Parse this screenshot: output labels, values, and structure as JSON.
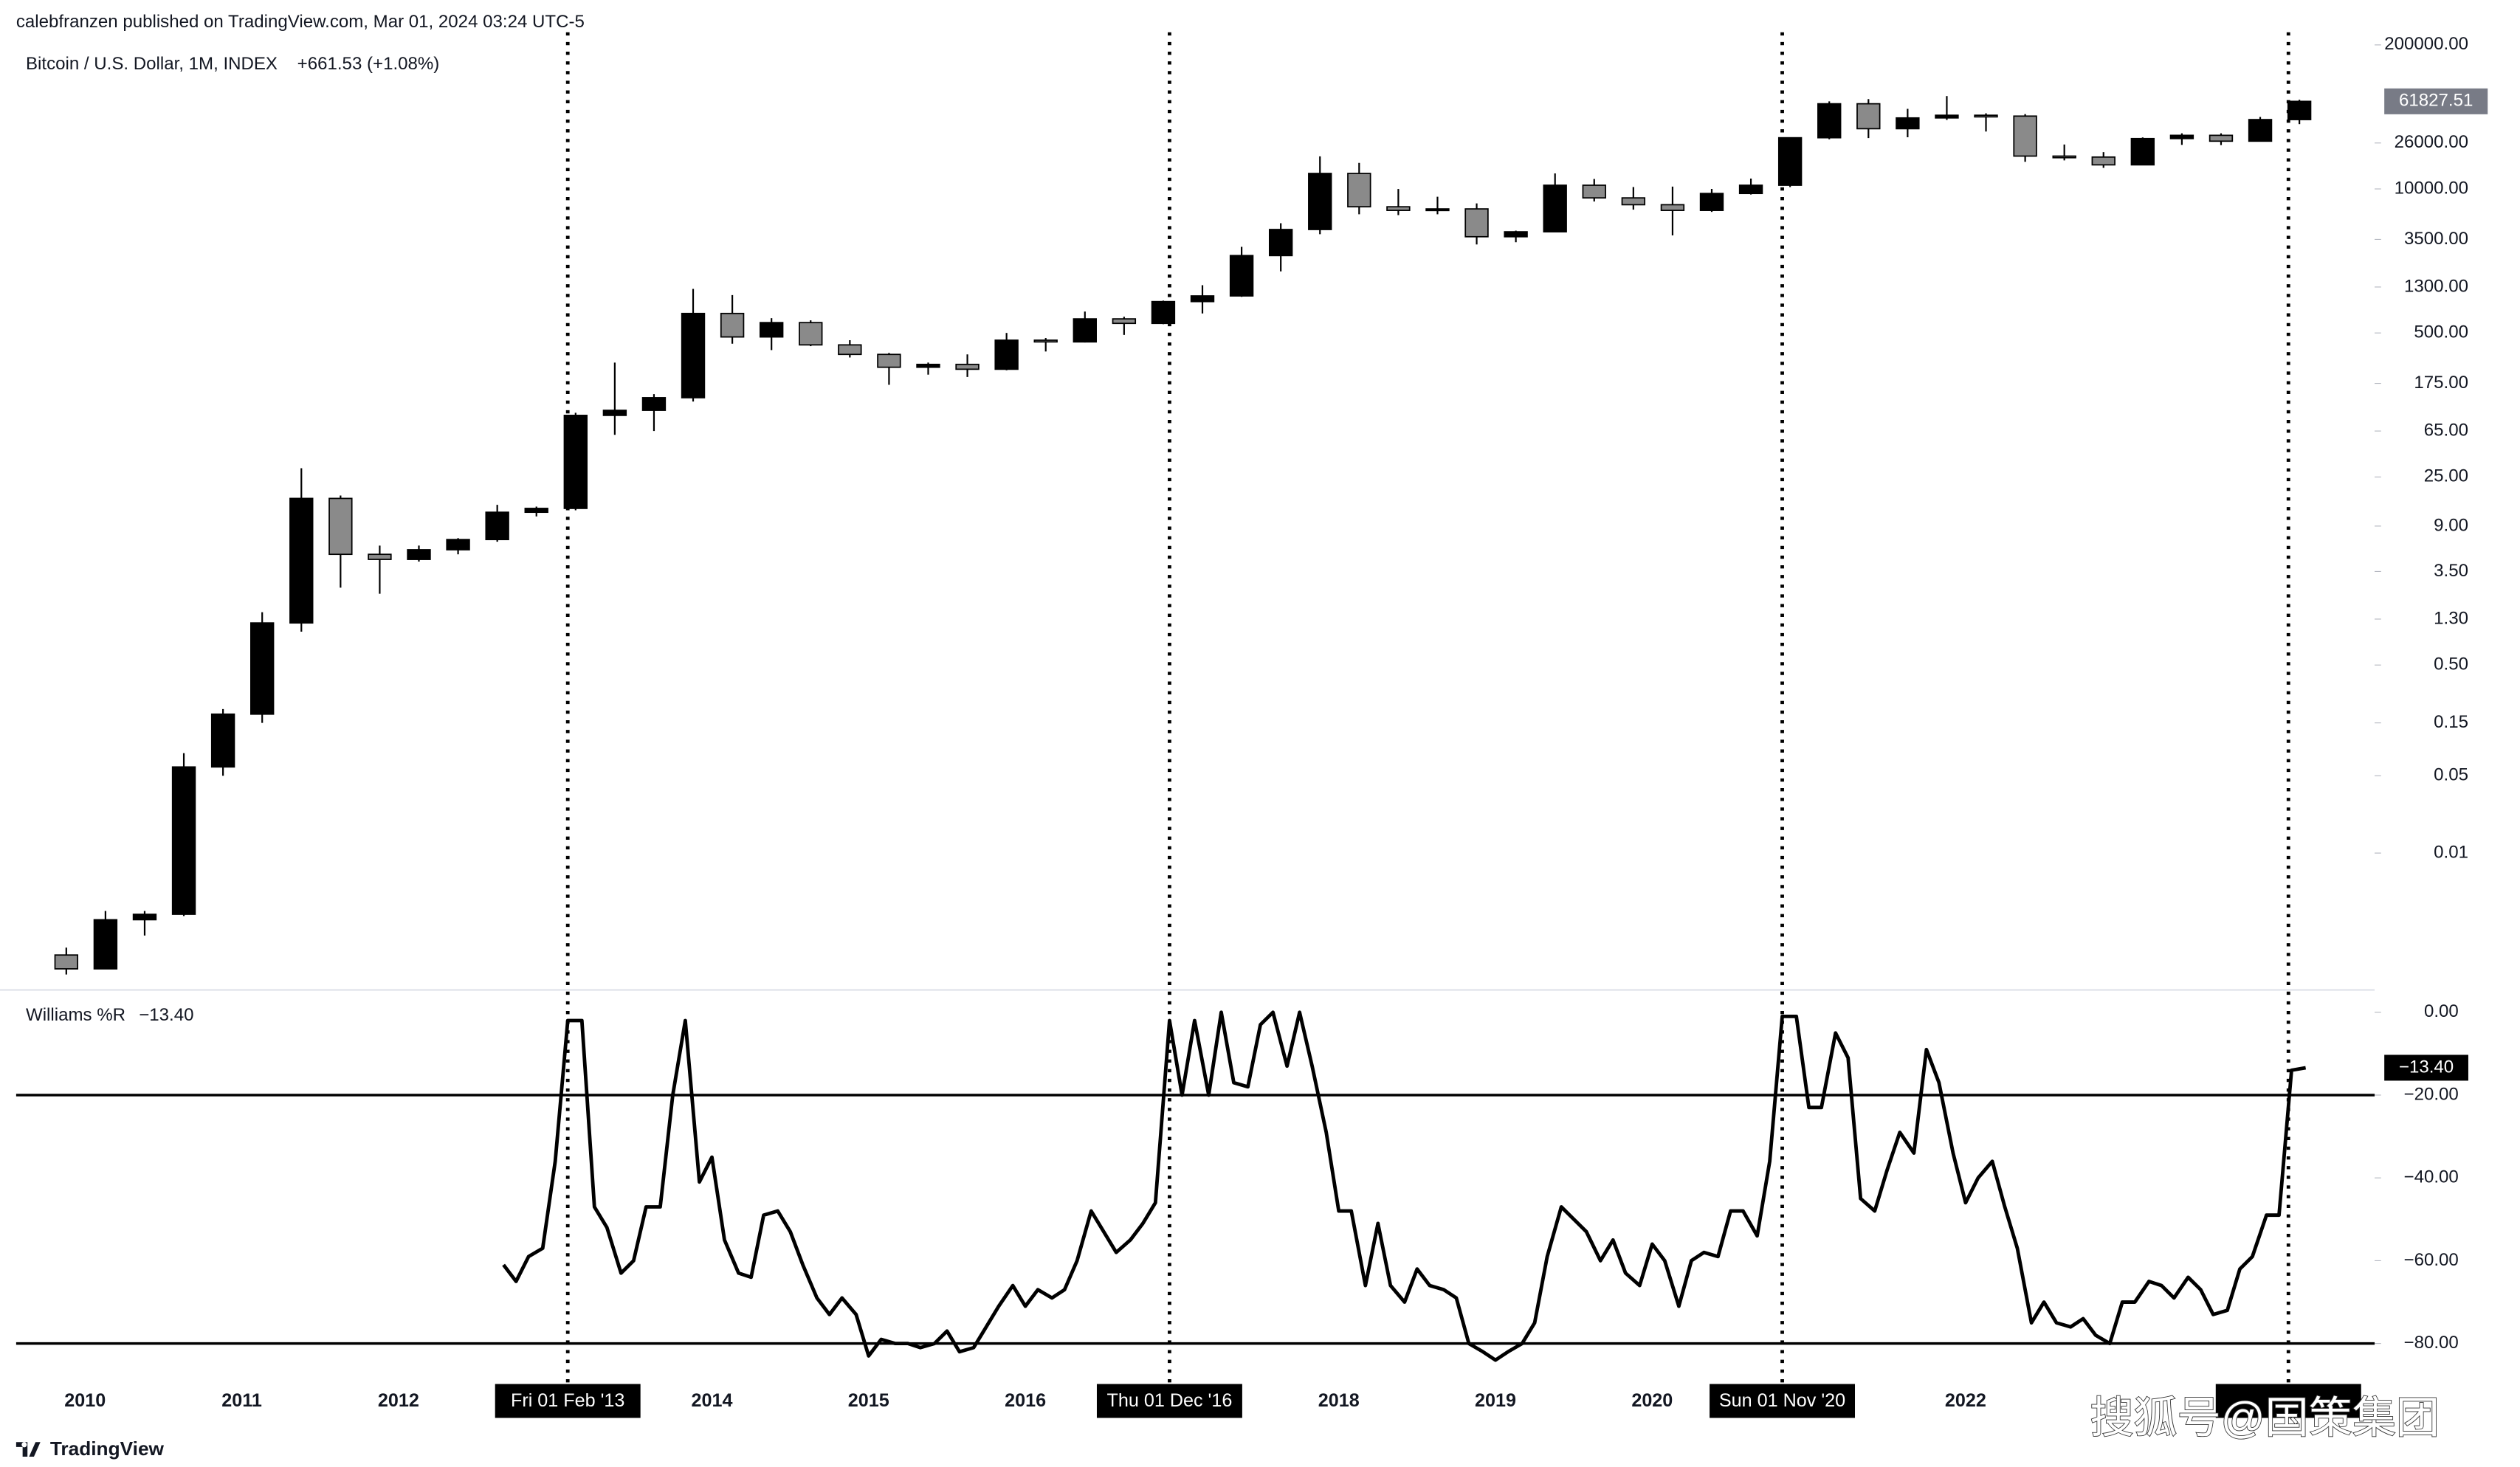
{
  "header": "calebfranzen published on TradingView.com, Mar 01, 2024 03:24 UTC-5",
  "change": "+661.53 (+1.08%)",
  "footer": "TradingView",
  "watermark": "搜狐号@国策集团",
  "chart_data": [
    {
      "type": "candlestick",
      "log_scale": true,
      "series": [
        {
          "name": "Bitcoin / U.S. Dollar, 1M, INDEX",
          "up_color": "#000000",
          "down_color": "#8a8a8a"
        }
      ],
      "x": [
        2009.88,
        2010.13,
        2010.38,
        2010.63,
        2010.88,
        2011.13,
        2011.38,
        2011.63,
        2011.88,
        2012.13,
        2012.38,
        2012.63,
        2012.88,
        2013.13,
        2013.38,
        2013.63,
        2013.88,
        2014.13,
        2014.38,
        2014.63,
        2014.88,
        2015.13,
        2015.38,
        2015.63,
        2015.88,
        2016.13,
        2016.38,
        2016.63,
        2016.88,
        2017.13,
        2017.38,
        2017.63,
        2017.88,
        2018.13,
        2018.38,
        2018.63,
        2018.88,
        2019.13,
        2019.38,
        2019.63,
        2019.88,
        2020.13,
        2020.38,
        2020.63,
        2020.88,
        2021.13,
        2021.38,
        2021.63,
        2021.88,
        2022.13,
        2022.38,
        2022.63,
        2022.88,
        2023.13,
        2023.38,
        2023.63,
        2023.88,
        2024.13
      ],
      "open": [
        0.0012,
        0.0009,
        0.0025,
        0.0028,
        0.06,
        0.18,
        1.2,
        16,
        5,
        4.5,
        5.5,
        6.8,
        12,
        13,
        90,
        100,
        130,
        750,
        460,
        620,
        390,
        320,
        245,
        260,
        235,
        430,
        415,
        670,
        610,
        960,
        1080,
        2500,
        4300,
        13800,
        6900,
        6400,
        6600,
        3700,
        4100,
        10800,
        8300,
        7200,
        6400,
        9100,
        10800,
        29000,
        58800,
        35000,
        43800,
        46300,
        45500,
        19800,
        19400,
        16500,
        28500,
        30500,
        27000,
        42300
      ],
      "high": [
        0.0014,
        0.003,
        0.003,
        0.08,
        0.2,
        1.5,
        30,
        17,
        6,
        6,
        7,
        14,
        13.5,
        95,
        270,
        140,
        1250,
        1100,
        680,
        650,
        430,
        330,
        270,
        320,
        500,
        450,
        780,
        700,
        980,
        1350,
        3000,
        4900,
        19700,
        17200,
        9990,
        8500,
        7400,
        4200,
        13800,
        12300,
        10400,
        10500,
        10000,
        12400,
        29300,
        61800,
        64800,
        52900,
        69000,
        48200,
        47400,
        25200,
        21500,
        29200,
        31800,
        31800,
        44700,
        63900
      ],
      "low": [
        0.0008,
        0.0009,
        0.0018,
        0.0027,
        0.05,
        0.15,
        1.0,
        2.5,
        2.2,
        4.3,
        5,
        6.5,
        11,
        12.5,
        60,
        65,
        120,
        400,
        350,
        380,
        300,
        170,
        210,
        200,
        230,
        340,
        410,
        480,
        600,
        750,
        1060,
        1800,
        3900,
        5900,
        5800,
        5900,
        3150,
        3300,
        4100,
        7700,
        6500,
        3800,
        6200,
        8900,
        10400,
        28100,
        28800,
        29300,
        42000,
        33000,
        17600,
        18100,
        15500,
        16500,
        25000,
        24900,
        26900,
        38500
      ],
      "close": [
        0.0009,
        0.0025,
        0.0028,
        0.06,
        0.18,
        1.2,
        16,
        5,
        4.5,
        5.5,
        6.8,
        12,
        13,
        90,
        100,
        130,
        750,
        460,
        620,
        390,
        320,
        245,
        260,
        235,
        430,
        415,
        670,
        610,
        960,
        1080,
        2500,
        4300,
        13800,
        6900,
        6400,
        6600,
        3700,
        4100,
        10800,
        8300,
        7200,
        6400,
        9100,
        10800,
        29000,
        58800,
        35000,
        43800,
        46300,
        45500,
        19800,
        19400,
        16500,
        28500,
        30500,
        27000,
        42300,
        61827.51
      ],
      "ylim": [
        0.0006,
        260000
      ],
      "yticks": [
        {
          "value": 200000,
          "label": "200000.00"
        },
        {
          "value": 26000,
          "label": "26000.00"
        },
        {
          "value": 10000,
          "label": "10000.00"
        },
        {
          "value": 3500,
          "label": "3500.00"
        },
        {
          "value": 1300,
          "label": "1300.00"
        },
        {
          "value": 500,
          "label": "500.00"
        },
        {
          "value": 175,
          "label": "175.00"
        },
        {
          "value": 65,
          "label": "65.00"
        },
        {
          "value": 25,
          "label": "25.00"
        },
        {
          "value": 9,
          "label": "9.00"
        },
        {
          "value": 3.5,
          "label": "3.50"
        },
        {
          "value": 1.3,
          "label": "1.30"
        },
        {
          "value": 0.5,
          "label": "0.50"
        },
        {
          "value": 0.15,
          "label": "0.15"
        },
        {
          "value": 0.05,
          "label": "0.05"
        },
        {
          "value": 0.01,
          "label": "0.01"
        }
      ],
      "last_price_color": "#787b86"
    },
    {
      "type": "line",
      "series": [
        {
          "name": "Williams %R",
          "color": "#000000",
          "values": [
            -61,
            -65,
            -59,
            -57,
            -36,
            -2,
            -2,
            -47,
            -52,
            -63,
            -60,
            -47,
            -47,
            -20,
            -2,
            -41,
            -35,
            -55,
            -63,
            -64,
            -49,
            -48,
            -53,
            -61,
            -69,
            -73,
            -69,
            -73,
            -83,
            -79,
            -80,
            -80,
            -81,
            -80,
            -77,
            -82,
            -81,
            -76,
            -71,
            -66,
            -71,
            -67,
            -69,
            -67,
            -60,
            -48,
            -53,
            -58,
            -55,
            -51,
            -46,
            -2,
            -20,
            -2,
            -20,
            0,
            -17,
            -18,
            -3,
            0,
            -13,
            0,
            -13,
            -29,
            -48,
            -48,
            -66,
            -51,
            -66,
            -70,
            -62,
            -66,
            -67,
            -69,
            -80,
            -82,
            -84,
            -82,
            -80,
            -75,
            -59,
            -47,
            -50,
            -53,
            -60,
            -55,
            -63,
            -66,
            -56,
            -60,
            -71,
            -60,
            -58,
            -59,
            -48,
            -48,
            -54,
            -36,
            -1,
            -1,
            -23,
            -23,
            -5,
            -11,
            -45,
            -48,
            -38,
            -29,
            -34,
            -9,
            -17,
            -34,
            -46,
            -40,
            -36,
            -47,
            -57,
            -75,
            -70,
            -75,
            -76,
            -74,
            -78,
            -80,
            -70,
            -70,
            -65,
            -66,
            -69,
            -64,
            -67,
            -73,
            -72,
            -62,
            -59,
            -49,
            -49,
            -14,
            -13.4
          ]
        }
      ],
      "x": [
        2012.67,
        2012.75,
        2012.83,
        2012.92,
        2013,
        2013.08,
        2013.17,
        2013.25,
        2013.33,
        2013.42,
        2013.5,
        2013.58,
        2013.67,
        2013.75,
        2013.83,
        2013.92,
        2014,
        2014.08,
        2014.17,
        2014.25,
        2014.33,
        2014.42,
        2014.5,
        2014.58,
        2014.67,
        2014.75,
        2014.83,
        2014.92,
        2015,
        2015.08,
        2015.17,
        2015.25,
        2015.33,
        2015.42,
        2015.5,
        2015.58,
        2015.67,
        2015.75,
        2015.83,
        2015.92,
        2016,
        2016.08,
        2016.17,
        2016.25,
        2016.33,
        2016.42,
        2016.5,
        2016.58,
        2016.67,
        2016.75,
        2016.83,
        2016.92,
        2017,
        2017.08,
        2017.17,
        2017.25,
        2017.33,
        2017.42,
        2017.5,
        2017.58,
        2017.67,
        2017.75,
        2017.83,
        2017.92,
        2018,
        2018.08,
        2018.17,
        2018.25,
        2018.33,
        2018.42,
        2018.5,
        2018.58,
        2018.67,
        2018.75,
        2018.83,
        2018.92,
        2019,
        2019.08,
        2019.17,
        2019.25,
        2019.33,
        2019.42,
        2019.5,
        2019.58,
        2019.67,
        2019.75,
        2019.83,
        2019.92,
        2020,
        2020.08,
        2020.17,
        2020.25,
        2020.33,
        2020.42,
        2020.5,
        2020.58,
        2020.67,
        2020.75,
        2020.83,
        2020.92,
        2021,
        2021.08,
        2021.17,
        2021.25,
        2021.33,
        2021.42,
        2021.5,
        2021.58,
        2021.67,
        2021.75,
        2021.83,
        2021.92,
        2022,
        2022.08,
        2022.17,
        2022.25,
        2022.33,
        2022.42,
        2022.5,
        2022.58,
        2022.67,
        2022.75,
        2022.83,
        2022.92,
        2023,
        2023.08,
        2023.17,
        2023.25,
        2023.33,
        2023.42,
        2023.5,
        2023.58,
        2023.67,
        2023.75,
        2023.83,
        2023.92,
        2024,
        2024.08,
        2024.17
      ],
      "current": {
        "value": -13.4,
        "label": "−13.40"
      },
      "levels": [
        -20,
        -80
      ],
      "ylim": [
        -89,
        5
      ],
      "yticks": [
        {
          "value": 0,
          "label": "0.00"
        },
        {
          "value": -20,
          "label": "−20.00"
        },
        {
          "value": -40,
          "label": "−40.00"
        },
        {
          "value": -60,
          "label": "−60.00"
        },
        {
          "value": -80,
          "label": "−80.00"
        }
      ],
      "xlim": [
        2009.56,
        2024.61
      ],
      "xticks": [
        2010,
        2011,
        2012,
        2014,
        2015,
        2016,
        2018,
        2019,
        2020,
        2022
      ],
      "markers": [
        {
          "x": 2013.08,
          "label": "Fri 01 Feb '13"
        },
        {
          "x": 2016.92,
          "label": "Thu 01 Dec '16"
        },
        {
          "x": 2020.83,
          "label": "Sun 01 Nov '20"
        },
        {
          "x": 2024.06,
          "label": null
        }
      ]
    }
  ]
}
